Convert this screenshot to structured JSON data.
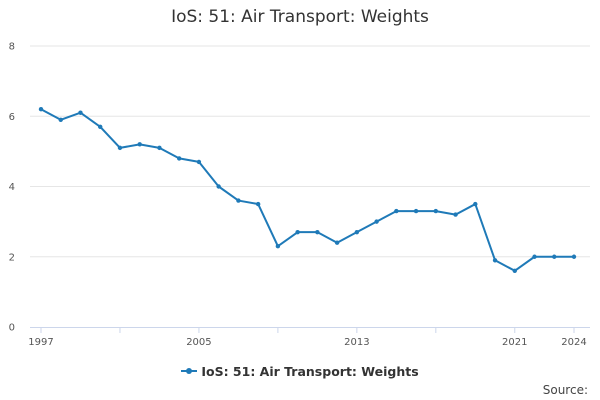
{
  "chart_data": {
    "type": "line",
    "title": "IoS: 51: Air Transport: Weights",
    "x": [
      1997,
      1998,
      1999,
      2000,
      2001,
      2002,
      2003,
      2004,
      2005,
      2006,
      2007,
      2008,
      2009,
      2010,
      2011,
      2012,
      2013,
      2014,
      2015,
      2016,
      2017,
      2018,
      2019,
      2020,
      2021,
      2022,
      2023,
      2024
    ],
    "x_tick_labels": [
      "1997",
      "2005",
      "2013",
      "2021",
      "2024"
    ],
    "y_tick_labels": [
      "0",
      "2",
      "4",
      "6",
      "8"
    ],
    "ylim": [
      0,
      8
    ],
    "xlim": [
      1997,
      2024
    ],
    "grid": "horizontal",
    "legend_position": "bottom",
    "series": [
      {
        "name": "IoS: 51: Air Transport: Weights",
        "color": "#1f7ab8",
        "values": [
          6.2,
          5.9,
          6.1,
          5.7,
          5.1,
          5.2,
          5.1,
          4.8,
          4.7,
          4.0,
          3.6,
          3.5,
          2.3,
          2.7,
          2.7,
          2.4,
          2.7,
          3.0,
          3.3,
          3.3,
          3.3,
          3.2,
          3.5,
          1.9,
          1.6,
          2.0,
          2.0,
          2.0
        ]
      }
    ]
  },
  "source_label": "Source:",
  "colors": {
    "grid": "#e6e6e6",
    "axis": "#ccd6eb",
    "line": "#1f7ab8"
  }
}
